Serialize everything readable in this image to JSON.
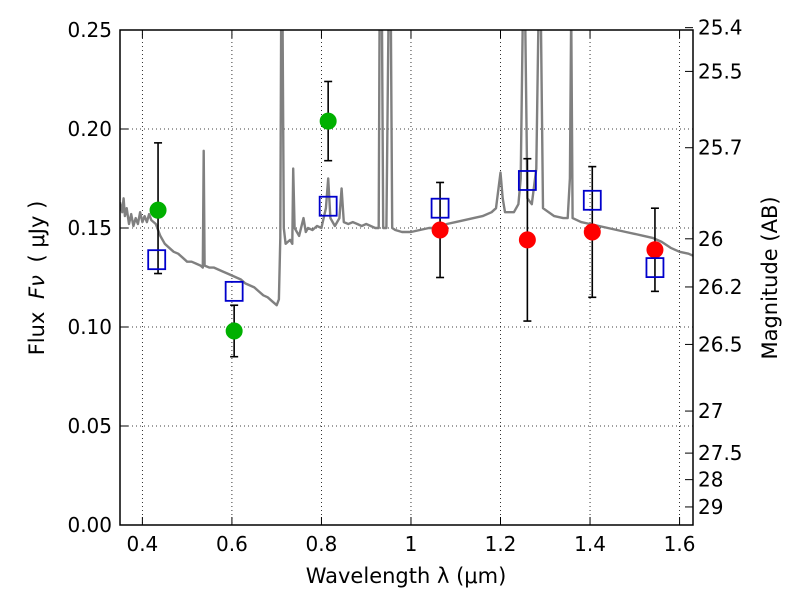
{
  "chart_data": {
    "type": "scatter",
    "xlabel": "Wavelength  λ (μm)",
    "ylabel_prefix": "Flux",
    "ylabel_symbol": "Fν",
    "ylabel_unit": "( μJy )",
    "y2label": "Magnitude (AB)",
    "xlim": [
      0.35,
      1.63
    ],
    "ylim": [
      0.0,
      0.25
    ],
    "x_ticks": [
      {
        "value": 0.4,
        "label": "0.4"
      },
      {
        "value": 0.6,
        "label": "0.6"
      },
      {
        "value": 0.8,
        "label": "0.8"
      },
      {
        "value": 1.0,
        "label": "1"
      },
      {
        "value": 1.2,
        "label": "1.2"
      },
      {
        "value": 1.4,
        "label": "1.4"
      },
      {
        "value": 1.6,
        "label": "1.6"
      }
    ],
    "y_ticks": [
      {
        "value": 0.0,
        "label": "0.00"
      },
      {
        "value": 0.05,
        "label": "0.05"
      },
      {
        "value": 0.1,
        "label": "0.10"
      },
      {
        "value": 0.15,
        "label": "0.15"
      },
      {
        "value": 0.2,
        "label": "0.20"
      },
      {
        "value": 0.25,
        "label": "0.25"
      }
    ],
    "mag_ticks": [
      {
        "value": 25.4,
        "label": "25.4"
      },
      {
        "value": 25.5,
        "label": "25.5"
      },
      {
        "value": 25.7,
        "label": "25.7"
      },
      {
        "value": 26.0,
        "label": "26"
      },
      {
        "value": 26.2,
        "label": "26.2"
      },
      {
        "value": 26.5,
        "label": "26.5"
      },
      {
        "value": 27.0,
        "label": "27"
      },
      {
        "value": 27.5,
        "label": "27.5"
      },
      {
        "value": 28.0,
        "label": "28"
      },
      {
        "value": 29.0,
        "label": "29"
      }
    ],
    "grid": true,
    "colors": {
      "spectrum": "#808080",
      "green": "#00b000",
      "red": "#ff0000",
      "model_box": "#0000cc",
      "error_bar": "#000000"
    },
    "spectrum": [
      [
        0.35,
        0.163
      ],
      [
        0.355,
        0.158
      ],
      [
        0.358,
        0.165
      ],
      [
        0.361,
        0.156
      ],
      [
        0.365,
        0.16
      ],
      [
        0.37,
        0.152
      ],
      [
        0.375,
        0.157
      ],
      [
        0.38,
        0.151
      ],
      [
        0.385,
        0.155
      ],
      [
        0.39,
        0.152
      ],
      [
        0.395,
        0.158
      ],
      [
        0.4,
        0.153
      ],
      [
        0.405,
        0.156
      ],
      [
        0.41,
        0.153
      ],
      [
        0.415,
        0.157
      ],
      [
        0.42,
        0.154
      ],
      [
        0.43,
        0.152
      ],
      [
        0.44,
        0.146
      ],
      [
        0.45,
        0.142
      ],
      [
        0.46,
        0.14
      ],
      [
        0.47,
        0.138
      ],
      [
        0.48,
        0.137
      ],
      [
        0.49,
        0.135
      ],
      [
        0.5,
        0.133
      ],
      [
        0.51,
        0.133
      ],
      [
        0.52,
        0.132
      ],
      [
        0.53,
        0.131
      ],
      [
        0.535,
        0.13
      ],
      [
        0.537,
        0.189
      ],
      [
        0.539,
        0.131
      ],
      [
        0.55,
        0.13
      ],
      [
        0.56,
        0.13
      ],
      [
        0.57,
        0.129
      ],
      [
        0.58,
        0.128
      ],
      [
        0.59,
        0.127
      ],
      [
        0.6,
        0.126
      ],
      [
        0.61,
        0.125
      ],
      [
        0.62,
        0.124
      ],
      [
        0.63,
        0.122
      ],
      [
        0.64,
        0.121
      ],
      [
        0.65,
        0.12
      ],
      [
        0.66,
        0.118
      ],
      [
        0.67,
        0.116
      ],
      [
        0.68,
        0.115
      ],
      [
        0.69,
        0.113
      ],
      [
        0.7,
        0.111
      ],
      [
        0.705,
        0.114
      ],
      [
        0.708,
        0.145
      ],
      [
        0.71,
        0.26
      ],
      [
        0.713,
        0.26
      ],
      [
        0.716,
        0.15
      ],
      [
        0.72,
        0.142
      ],
      [
        0.73,
        0.144
      ],
      [
        0.735,
        0.142
      ],
      [
        0.737,
        0.18
      ],
      [
        0.74,
        0.15
      ],
      [
        0.75,
        0.146
      ],
      [
        0.76,
        0.155
      ],
      [
        0.765,
        0.148
      ],
      [
        0.77,
        0.15
      ],
      [
        0.78,
        0.149
      ],
      [
        0.79,
        0.151
      ],
      [
        0.8,
        0.15
      ],
      [
        0.81,
        0.16
      ],
      [
        0.815,
        0.175
      ],
      [
        0.82,
        0.155
      ],
      [
        0.83,
        0.151
      ],
      [
        0.84,
        0.155
      ],
      [
        0.845,
        0.17
      ],
      [
        0.85,
        0.153
      ],
      [
        0.86,
        0.152
      ],
      [
        0.87,
        0.153
      ],
      [
        0.88,
        0.152
      ],
      [
        0.89,
        0.151
      ],
      [
        0.9,
        0.152
      ],
      [
        0.91,
        0.151
      ],
      [
        0.92,
        0.15
      ],
      [
        0.928,
        0.15
      ],
      [
        0.93,
        0.26
      ],
      [
        0.935,
        0.26
      ],
      [
        0.938,
        0.15
      ],
      [
        0.945,
        0.15
      ],
      [
        0.95,
        0.26
      ],
      [
        0.955,
        0.26
      ],
      [
        0.958,
        0.15
      ],
      [
        0.965,
        0.149
      ],
      [
        0.98,
        0.148
      ],
      [
        1.0,
        0.148
      ],
      [
        1.02,
        0.149
      ],
      [
        1.04,
        0.15
      ],
      [
        1.06,
        0.15
      ],
      [
        1.08,
        0.152
      ],
      [
        1.1,
        0.153
      ],
      [
        1.12,
        0.154
      ],
      [
        1.14,
        0.155
      ],
      [
        1.16,
        0.156
      ],
      [
        1.18,
        0.158
      ],
      [
        1.19,
        0.16
      ],
      [
        1.2,
        0.178
      ],
      [
        1.205,
        0.165
      ],
      [
        1.21,
        0.158
      ],
      [
        1.23,
        0.158
      ],
      [
        1.24,
        0.162
      ],
      [
        1.245,
        0.175
      ],
      [
        1.25,
        0.26
      ],
      [
        1.255,
        0.26
      ],
      [
        1.26,
        0.165
      ],
      [
        1.27,
        0.162
      ],
      [
        1.28,
        0.18
      ],
      [
        1.285,
        0.26
      ],
      [
        1.29,
        0.26
      ],
      [
        1.295,
        0.16
      ],
      [
        1.32,
        0.156
      ],
      [
        1.34,
        0.155
      ],
      [
        1.35,
        0.155
      ],
      [
        1.355,
        0.175
      ],
      [
        1.358,
        0.26
      ],
      [
        1.361,
        0.155
      ],
      [
        1.38,
        0.153
      ],
      [
        1.4,
        0.152
      ],
      [
        1.42,
        0.151
      ],
      [
        1.44,
        0.15
      ],
      [
        1.46,
        0.149
      ],
      [
        1.48,
        0.148
      ],
      [
        1.5,
        0.147
      ],
      [
        1.52,
        0.146
      ],
      [
        1.54,
        0.145
      ],
      [
        1.56,
        0.143
      ],
      [
        1.58,
        0.14
      ],
      [
        1.6,
        0.138
      ],
      [
        1.62,
        0.137
      ],
      [
        1.63,
        0.136
      ]
    ],
    "series": [
      {
        "color": "green",
        "marker": "circle",
        "points": [
          {
            "x": 0.435,
            "y": 0.159,
            "err_low": 0.032,
            "err_high": 0.034
          },
          {
            "x": 0.605,
            "y": 0.098,
            "err_low": 0.013,
            "err_high": 0.013
          },
          {
            "x": 0.815,
            "y": 0.204,
            "err_low": 0.02,
            "err_high": 0.02
          }
        ]
      },
      {
        "color": "red",
        "marker": "circle",
        "points": [
          {
            "x": 1.065,
            "y": 0.149,
            "err_low": 0.024,
            "err_high": 0.024
          },
          {
            "x": 1.26,
            "y": 0.144,
            "err_low": 0.041,
            "err_high": 0.041
          },
          {
            "x": 1.405,
            "y": 0.148,
            "err_low": 0.033,
            "err_high": 0.033
          },
          {
            "x": 1.545,
            "y": 0.139,
            "err_low": 0.021,
            "err_high": 0.021
          }
        ]
      },
      {
        "color": "model_box",
        "marker": "square-open",
        "points": [
          {
            "x": 0.432,
            "y": 0.134
          },
          {
            "x": 0.605,
            "y": 0.118
          },
          {
            "x": 0.815,
            "y": 0.161
          },
          {
            "x": 1.065,
            "y": 0.16
          },
          {
            "x": 1.26,
            "y": 0.174
          },
          {
            "x": 1.405,
            "y": 0.164
          },
          {
            "x": 1.545,
            "y": 0.13
          }
        ]
      }
    ]
  }
}
